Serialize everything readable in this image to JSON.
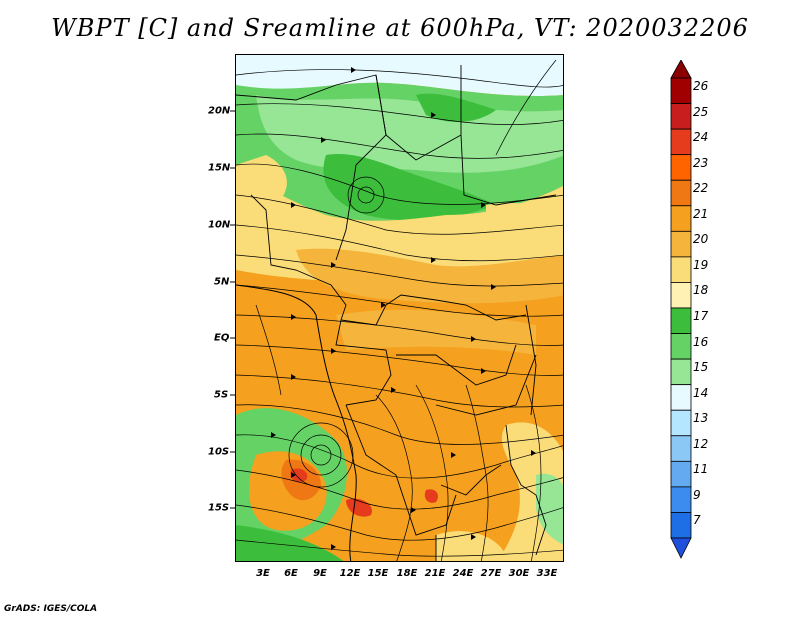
{
  "title": "WBPT [C] and Sreamline at 600hPa, VT: 2020032206",
  "footer": "GrADS: IGES/COLA",
  "lat_labels": [
    "20N",
    "15N",
    "10N",
    "5N",
    "EQ",
    "5S",
    "10S",
    "15S"
  ],
  "lon_labels": [
    "3E",
    "6E",
    "9E",
    "12E",
    "15E",
    "18E",
    "21E",
    "24E",
    "27E",
    "30E",
    "33E"
  ],
  "colorbar": {
    "levels": [
      "26",
      "25",
      "24",
      "23",
      "22",
      "21",
      "20",
      "19",
      "18",
      "17",
      "16",
      "15",
      "14",
      "13",
      "12",
      "11",
      "9",
      "7"
    ],
    "colors": [
      "#a00000",
      "#c81e1e",
      "#e63c1e",
      "#ff6400",
      "#f07814",
      "#f5a01e",
      "#f5b43c",
      "#fadc78",
      "#fff0b4",
      "#3cbe3c",
      "#64d264",
      "#96e696",
      "#e6faff",
      "#b4e6ff",
      "#8cc8f5",
      "#64aaf0",
      "#3c8cf0",
      "#1e6ee6"
    ],
    "top_arrow_color": "#8b0000",
    "bottom_arrow_color": "#1e50dc"
  }
}
